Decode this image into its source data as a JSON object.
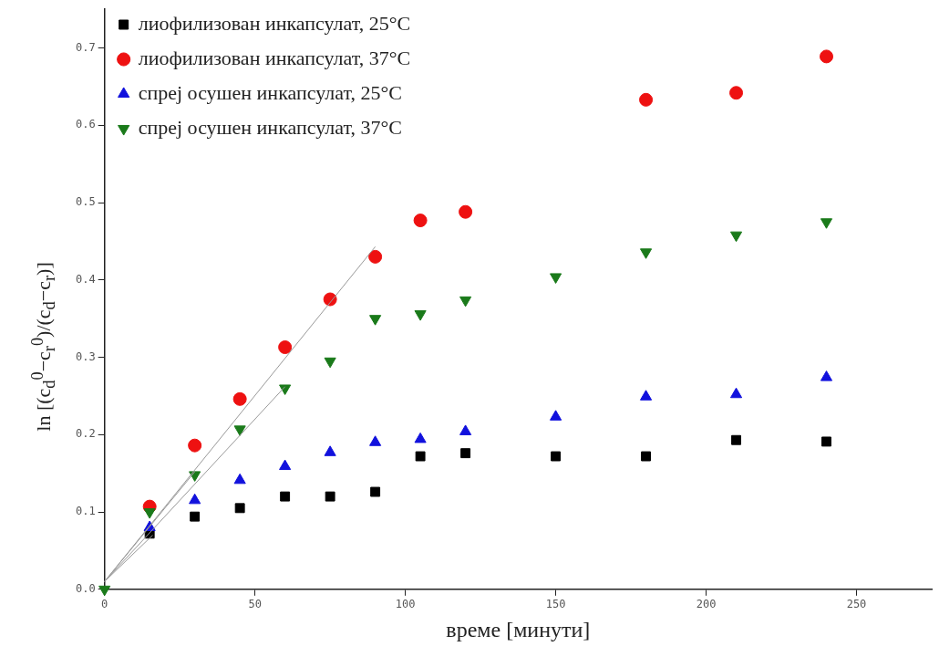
{
  "chart_data": {
    "type": "scatter",
    "xlabel": "време [минути]",
    "ylabel": "ln [(c$_{d}$$^{0}$−c$_{r}$$^{0}$)/(c$_{d}$−c$_{r}$)]",
    "x": [
      0,
      15,
      30,
      45,
      60,
      75,
      90,
      105,
      120,
      150,
      180,
      210,
      240
    ],
    "series": [
      {
        "name": "лиофилизован инкапсулат, 25°C",
        "color": "#000000",
        "marker": "square",
        "values": [
          null,
          0.072,
          0.094,
          0.105,
          0.12,
          0.12,
          0.126,
          0.172,
          0.176,
          0.172,
          0.172,
          0.193,
          0.191
        ]
      },
      {
        "name": "лиофилизован инкапсулат, 37°C",
        "color": "#ee1111",
        "marker": "circle",
        "values": [
          null,
          0.107,
          0.186,
          0.246,
          0.313,
          0.375,
          0.43,
          0.477,
          0.488,
          null,
          0.633,
          0.642,
          0.689
        ]
      },
      {
        "name": "спреј осушен инкапсулат, 25°C",
        "color": "#1111dd",
        "marker": "triangle",
        "values": [
          null,
          0.08,
          0.115,
          0.141,
          0.159,
          0.177,
          0.19,
          0.194,
          0.204,
          0.223,
          0.249,
          0.252,
          0.274
        ]
      },
      {
        "name": "спреј осушен инкапсулат, 37°C",
        "color": "#1a7a1a",
        "marker": "triangle-down",
        "values": [
          0,
          0.1,
          0.148,
          0.207,
          0.26,
          0.295,
          0.35,
          0.356,
          0.374,
          0.404,
          0.436,
          0.458,
          0.475
        ]
      },
      {
        "type": "line",
        "color": "#999999",
        "marker": "none",
        "x": [
          0,
          90
        ],
        "values": [
          0.01,
          0.443
        ]
      },
      {
        "type": "line",
        "color": "#999999",
        "marker": "none",
        "x": [
          0,
          60
        ],
        "values": [
          0.01,
          0.262
        ]
      },
      {
        "type": "line",
        "color": "#999999",
        "marker": "none",
        "x": [
          0,
          30
        ],
        "values": [
          0.01,
          0.152
        ]
      },
      {
        "type": "line",
        "color": "#999999",
        "marker": "none",
        "x": [
          0,
          16
        ],
        "values": [
          0.01,
          0.07
        ]
      }
    ],
    "xlim": [
      0,
      275
    ],
    "xticks": [
      0,
      50,
      100,
      150,
      200,
      250
    ],
    "ylim": [
      0,
      0.75
    ],
    "yticks": [
      {
        "value": 0,
        "label": "0.0"
      },
      0.1,
      0.2,
      0.3,
      0.4,
      0.5,
      0.6,
      0.7
    ],
    "grid": false,
    "legend": "top left"
  }
}
